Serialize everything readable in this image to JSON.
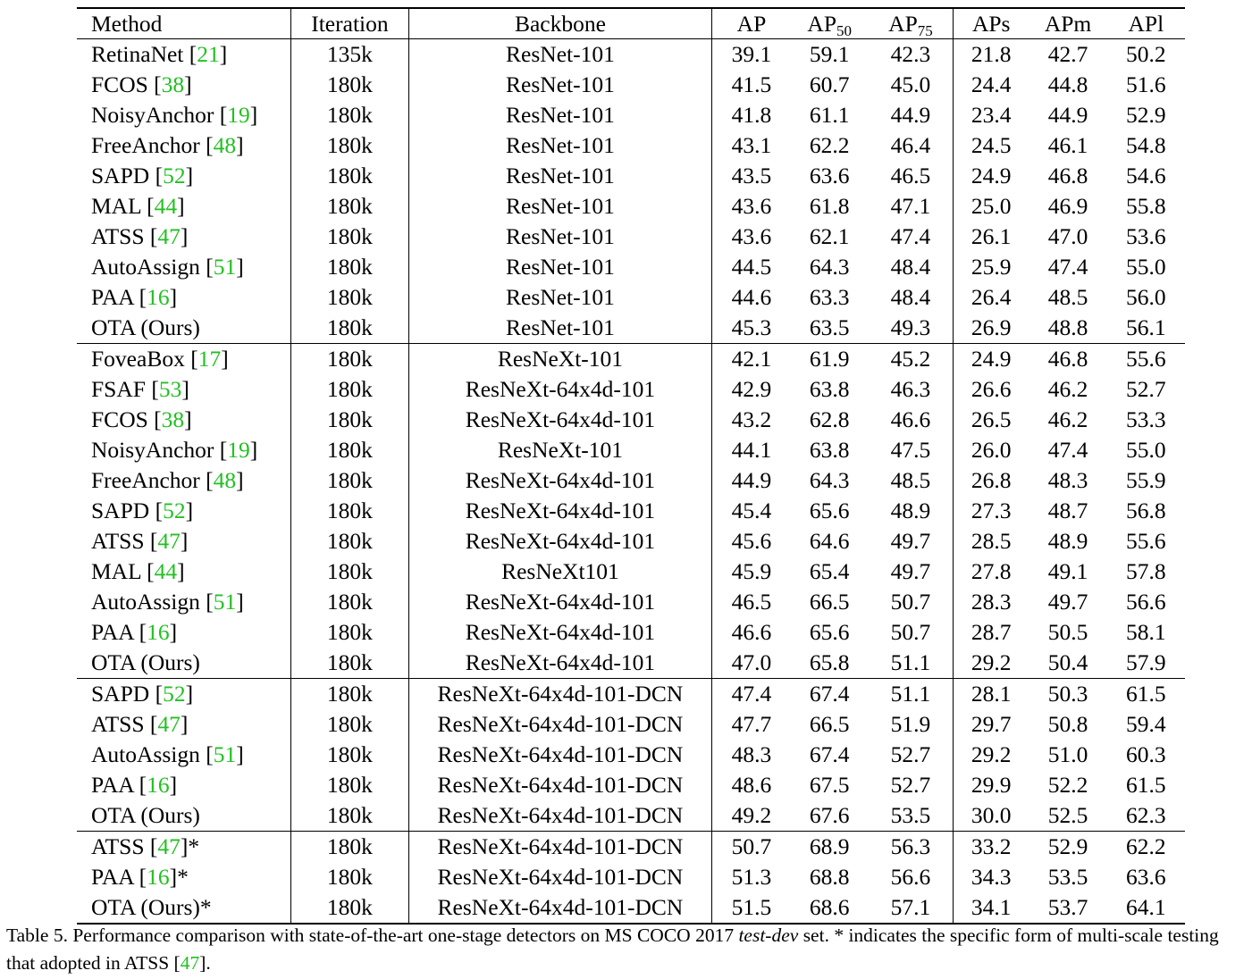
{
  "table": {
    "headers": {
      "method": "Method",
      "iteration": "Iteration",
      "backbone": "Backbone",
      "ap": "AP",
      "ap50_base": "AP",
      "ap50_sub": "50",
      "ap75_base": "AP",
      "ap75_sub": "75",
      "aps": "APs",
      "apm": "APm",
      "apl": "APl"
    },
    "groups": [
      {
        "rows": [
          {
            "method": "RetinaNet",
            "ref": "21",
            "suffix": "",
            "iteration": "135k",
            "backbone": "ResNet-101",
            "values": [
              "39.1",
              "59.1",
              "42.3",
              "21.8",
              "42.7",
              "50.2"
            ],
            "bold": [
              false,
              false,
              false,
              false,
              false,
              false
            ]
          },
          {
            "method": "FCOS",
            "ref": "38",
            "suffix": "",
            "iteration": "180k",
            "backbone": "ResNet-101",
            "values": [
              "41.5",
              "60.7",
              "45.0",
              "24.4",
              "44.8",
              "51.6"
            ],
            "bold": [
              false,
              false,
              false,
              false,
              false,
              false
            ]
          },
          {
            "method": "NoisyAnchor",
            "ref": "19",
            "suffix": "",
            "iteration": "180k",
            "backbone": "ResNet-101",
            "values": [
              "41.8",
              "61.1",
              "44.9",
              "23.4",
              "44.9",
              "52.9"
            ],
            "bold": [
              false,
              false,
              false,
              false,
              false,
              false
            ]
          },
          {
            "method": "FreeAnchor",
            "ref": "48",
            "suffix": "",
            "iteration": "180k",
            "backbone": "ResNet-101",
            "values": [
              "43.1",
              "62.2",
              "46.4",
              "24.5",
              "46.1",
              "54.8"
            ],
            "bold": [
              false,
              false,
              false,
              false,
              false,
              false
            ]
          },
          {
            "method": "SAPD",
            "ref": "52",
            "suffix": "",
            "iteration": "180k",
            "backbone": "ResNet-101",
            "values": [
              "43.5",
              "63.6",
              "46.5",
              "24.9",
              "46.8",
              "54.6"
            ],
            "bold": [
              false,
              false,
              false,
              false,
              false,
              false
            ]
          },
          {
            "method": "MAL",
            "ref": "44",
            "suffix": "",
            "iteration": "180k",
            "backbone": "ResNet-101",
            "values": [
              "43.6",
              "61.8",
              "47.1",
              "25.0",
              "46.9",
              "55.8"
            ],
            "bold": [
              false,
              false,
              false,
              false,
              false,
              false
            ]
          },
          {
            "method": "ATSS",
            "ref": "47",
            "suffix": "",
            "iteration": "180k",
            "backbone": "ResNet-101",
            "values": [
              "43.6",
              "62.1",
              "47.4",
              "26.1",
              "47.0",
              "53.6"
            ],
            "bold": [
              false,
              false,
              false,
              false,
              false,
              false
            ]
          },
          {
            "method": "AutoAssign",
            "ref": "51",
            "suffix": "",
            "iteration": "180k",
            "backbone": "ResNet-101",
            "values": [
              "44.5",
              "64.3",
              "48.4",
              "25.9",
              "47.4",
              "55.0"
            ],
            "bold": [
              false,
              true,
              false,
              false,
              false,
              false
            ]
          },
          {
            "method": "PAA",
            "ref": "16",
            "suffix": "",
            "iteration": "180k",
            "backbone": "ResNet-101",
            "values": [
              "44.6",
              "63.3",
              "48.4",
              "26.4",
              "48.5",
              "56.0"
            ],
            "bold": [
              false,
              false,
              false,
              false,
              false,
              false
            ]
          },
          {
            "method": "OTA (Ours)",
            "ref": "",
            "suffix": "",
            "iteration": "180k",
            "backbone": "ResNet-101",
            "values": [
              "45.3",
              "63.5",
              "49.3",
              "26.9",
              "48.8",
              "56.1"
            ],
            "bold": [
              true,
              false,
              true,
              true,
              true,
              true
            ]
          }
        ]
      },
      {
        "rows": [
          {
            "method": "FoveaBox",
            "ref": "17",
            "suffix": "",
            "iteration": "180k",
            "backbone": "ResNeXt-101",
            "values": [
              "42.1",
              "61.9",
              "45.2",
              "24.9",
              "46.8",
              "55.6"
            ],
            "bold": [
              false,
              false,
              false,
              false,
              false,
              false
            ]
          },
          {
            "method": "FSAF",
            "ref": "53",
            "suffix": "",
            "iteration": "180k",
            "backbone": "ResNeXt-64x4d-101",
            "values": [
              "42.9",
              "63.8",
              "46.3",
              "26.6",
              "46.2",
              "52.7"
            ],
            "bold": [
              false,
              false,
              false,
              false,
              false,
              false
            ]
          },
          {
            "method": "FCOS",
            "ref": "38",
            "suffix": "",
            "iteration": "180k",
            "backbone": "ResNeXt-64x4d-101",
            "values": [
              "43.2",
              "62.8",
              "46.6",
              "26.5",
              "46.2",
              "53.3"
            ],
            "bold": [
              false,
              false,
              false,
              false,
              false,
              false
            ]
          },
          {
            "method": "NoisyAnchor",
            "ref": "19",
            "suffix": "",
            "iteration": "180k",
            "backbone": "ResNeXt-101",
            "values": [
              "44.1",
              "63.8",
              "47.5",
              "26.0",
              "47.4",
              "55.0"
            ],
            "bold": [
              false,
              false,
              false,
              false,
              false,
              false
            ]
          },
          {
            "method": "FreeAnchor",
            "ref": "48",
            "suffix": "",
            "iteration": "180k",
            "backbone": "ResNeXt-64x4d-101",
            "values": [
              "44.9",
              "64.3",
              "48.5",
              "26.8",
              "48.3",
              "55.9"
            ],
            "bold": [
              false,
              false,
              false,
              false,
              false,
              false
            ]
          },
          {
            "method": "SAPD",
            "ref": "52",
            "suffix": "",
            "iteration": "180k",
            "backbone": "ResNeXt-64x4d-101",
            "values": [
              "45.4",
              "65.6",
              "48.9",
              "27.3",
              "48.7",
              "56.8"
            ],
            "bold": [
              false,
              false,
              false,
              false,
              false,
              false
            ]
          },
          {
            "method": "ATSS",
            "ref": "47",
            "suffix": "",
            "iteration": "180k",
            "backbone": "ResNeXt-64x4d-101",
            "values": [
              "45.6",
              "64.6",
              "49.7",
              "28.5",
              "48.9",
              "55.6"
            ],
            "bold": [
              false,
              false,
              false,
              false,
              false,
              false
            ]
          },
          {
            "method": "MAL",
            "ref": "44",
            "suffix": "",
            "iteration": "180k",
            "backbone": "ResNeXt101",
            "values": [
              "45.9",
              "65.4",
              "49.7",
              "27.8",
              "49.1",
              "57.8"
            ],
            "bold": [
              false,
              false,
              false,
              false,
              false,
              false
            ]
          },
          {
            "method": "AutoAssign",
            "ref": "51",
            "suffix": "",
            "iteration": "180k",
            "backbone": "ResNeXt-64x4d-101",
            "values": [
              "46.5",
              "66.5",
              "50.7",
              "28.3",
              "49.7",
              "56.6"
            ],
            "bold": [
              false,
              true,
              false,
              false,
              false,
              false
            ]
          },
          {
            "method": "PAA",
            "ref": "16",
            "suffix": "",
            "iteration": "180k",
            "backbone": "ResNeXt-64x4d-101",
            "values": [
              "46.6",
              "65.6",
              "50.7",
              "28.7",
              "50.5",
              "58.1"
            ],
            "bold": [
              false,
              false,
              false,
              false,
              true,
              true
            ]
          },
          {
            "method": "OTA (Ours)",
            "ref": "",
            "suffix": "",
            "iteration": "180k",
            "backbone": "ResNeXt-64x4d-101",
            "values": [
              "47.0",
              "65.8",
              "51.1",
              "29.2",
              "50.4",
              "57.9"
            ],
            "bold": [
              true,
              false,
              true,
              true,
              false,
              false
            ]
          }
        ]
      },
      {
        "rows": [
          {
            "method": "SAPD",
            "ref": "52",
            "suffix": "",
            "iteration": "180k",
            "backbone": "ResNeXt-64x4d-101-DCN",
            "values": [
              "47.4",
              "67.4",
              "51.1",
              "28.1",
              "50.3",
              "61.5"
            ],
            "bold": [
              false,
              false,
              false,
              false,
              false,
              false
            ]
          },
          {
            "method": "ATSS",
            "ref": "47",
            "suffix": "",
            "iteration": "180k",
            "backbone": "ResNeXt-64x4d-101-DCN",
            "values": [
              "47.7",
              "66.5",
              "51.9",
              "29.7",
              "50.8",
              "59.4"
            ],
            "bold": [
              false,
              false,
              false,
              false,
              false,
              false
            ]
          },
          {
            "method": "AutoAssign",
            "ref": "51",
            "suffix": "",
            "iteration": "180k",
            "backbone": "ResNeXt-64x4d-101-DCN",
            "values": [
              "48.3",
              "67.4",
              "52.7",
              "29.2",
              "51.0",
              "60.3"
            ],
            "bold": [
              false,
              false,
              false,
              false,
              false,
              false
            ]
          },
          {
            "method": "PAA",
            "ref": "16",
            "suffix": "",
            "iteration": "180k",
            "backbone": "ResNeXt-64x4d-101-DCN",
            "values": [
              "48.6",
              "67.5",
              "52.7",
              "29.9",
              "52.2",
              "61.5"
            ],
            "bold": [
              false,
              false,
              false,
              false,
              false,
              false
            ]
          },
          {
            "method": "OTA (Ours)",
            "ref": "",
            "suffix": "",
            "iteration": "180k",
            "backbone": "ResNeXt-64x4d-101-DCN",
            "values": [
              "49.2",
              "67.6",
              "53.5",
              "30.0",
              "52.5",
              "62.3"
            ],
            "bold": [
              true,
              true,
              true,
              true,
              true,
              true
            ]
          }
        ]
      },
      {
        "rows": [
          {
            "method": "ATSS",
            "ref": "47",
            "suffix": "*",
            "iteration": "180k",
            "backbone": "ResNeXt-64x4d-101-DCN",
            "values": [
              "50.7",
              "68.9",
              "56.3",
              "33.2",
              "52.9",
              "62.2"
            ],
            "bold": [
              false,
              true,
              false,
              false,
              false,
              false
            ]
          },
          {
            "method": "PAA",
            "ref": "16",
            "suffix": "*",
            "iteration": "180k",
            "backbone": "ResNeXt-64x4d-101-DCN",
            "values": [
              "51.3",
              "68.8",
              "56.6",
              "34.3",
              "53.5",
              "63.6"
            ],
            "bold": [
              false,
              false,
              false,
              true,
              false,
              false
            ]
          },
          {
            "method": "OTA (Ours)*",
            "ref": "",
            "suffix": "",
            "iteration": "180k",
            "backbone": "ResNeXt-64x4d-101-DCN",
            "values": [
              "51.5",
              "68.6",
              "57.1",
              "34.1",
              "53.7",
              "64.1"
            ],
            "bold": [
              true,
              false,
              true,
              false,
              true,
              true
            ]
          }
        ]
      }
    ]
  },
  "caption": {
    "prefix": "Table 5. Performance comparison with state-of-the-art one-stage detectors on MS COCO 2017 ",
    "emph": "test-dev",
    "middle": " set. * indicates the specific form of multi-scale testing that adopted in ATSS [",
    "ref": "47",
    "end": "]."
  },
  "colors": {
    "citation": "#22c022",
    "text": "#000000"
  }
}
